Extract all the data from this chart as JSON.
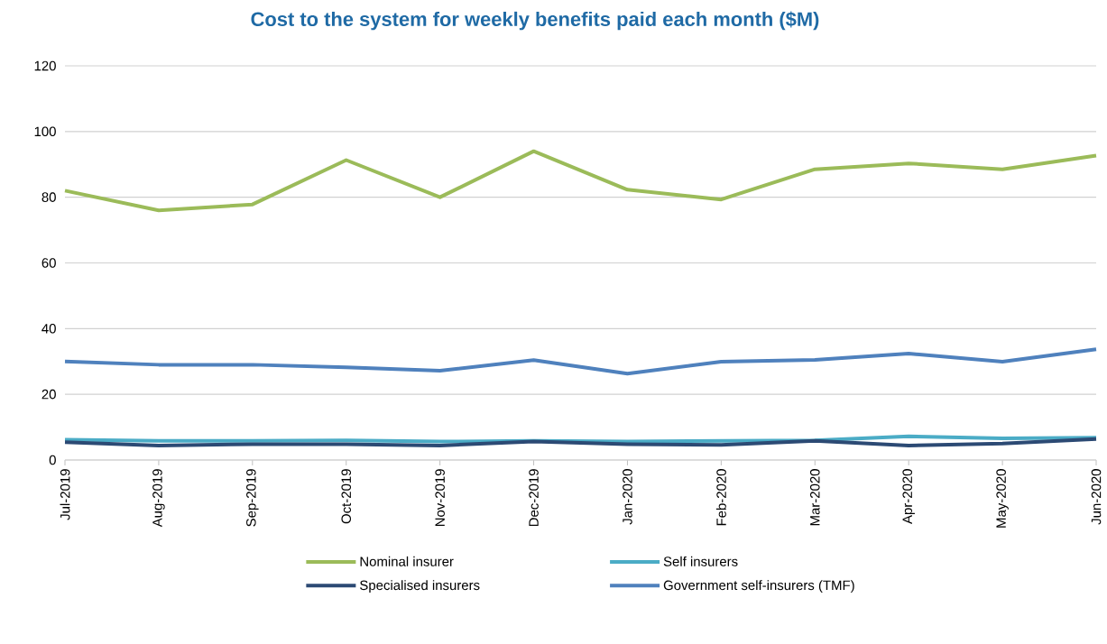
{
  "chart_data": {
    "type": "line",
    "title": "Cost to the system for weekly benefits paid each month ($M)",
    "categories": [
      "Jul-2019",
      "Aug-2019",
      "Sep-2019",
      "Oct-2019",
      "Nov-2019",
      "Dec-2019",
      "Jan-2020",
      "Feb-2020",
      "Mar-2020",
      "Apr-2020",
      "May-2020",
      "Jun-2020"
    ],
    "series": [
      {
        "name": "Nominal insurer",
        "color": "#9bbb59",
        "values": [
          82,
          76,
          77.8,
          91.3,
          80,
          94,
          82.3,
          79.3,
          88.5,
          90.3,
          88.5,
          92.7
        ]
      },
      {
        "name": "Self insurers",
        "color": "#4bacc6",
        "values": [
          6.2,
          5.8,
          5.8,
          6.0,
          5.6,
          5.8,
          5.6,
          5.8,
          6.0,
          7.2,
          6.6,
          6.8
        ]
      },
      {
        "name": "Specialised insurers",
        "color": "#2c4a74",
        "values": [
          5.4,
          4.4,
          4.8,
          4.8,
          4.4,
          5.6,
          4.8,
          4.6,
          5.8,
          4.4,
          5.0,
          6.4
        ]
      },
      {
        "name": "Government self-insurers (TMF)",
        "color": "#4f81bd",
        "values": [
          30,
          29,
          29,
          28.2,
          27.2,
          30.4,
          26.3,
          29.9,
          30.5,
          32.4,
          29.9,
          33.7
        ]
      }
    ],
    "ylim": [
      0,
      120
    ],
    "yticks": [
      0,
      20,
      40,
      60,
      80,
      100,
      120
    ],
    "grid": "y",
    "legend": "bottom",
    "marker": "none",
    "line_style": "solid"
  }
}
